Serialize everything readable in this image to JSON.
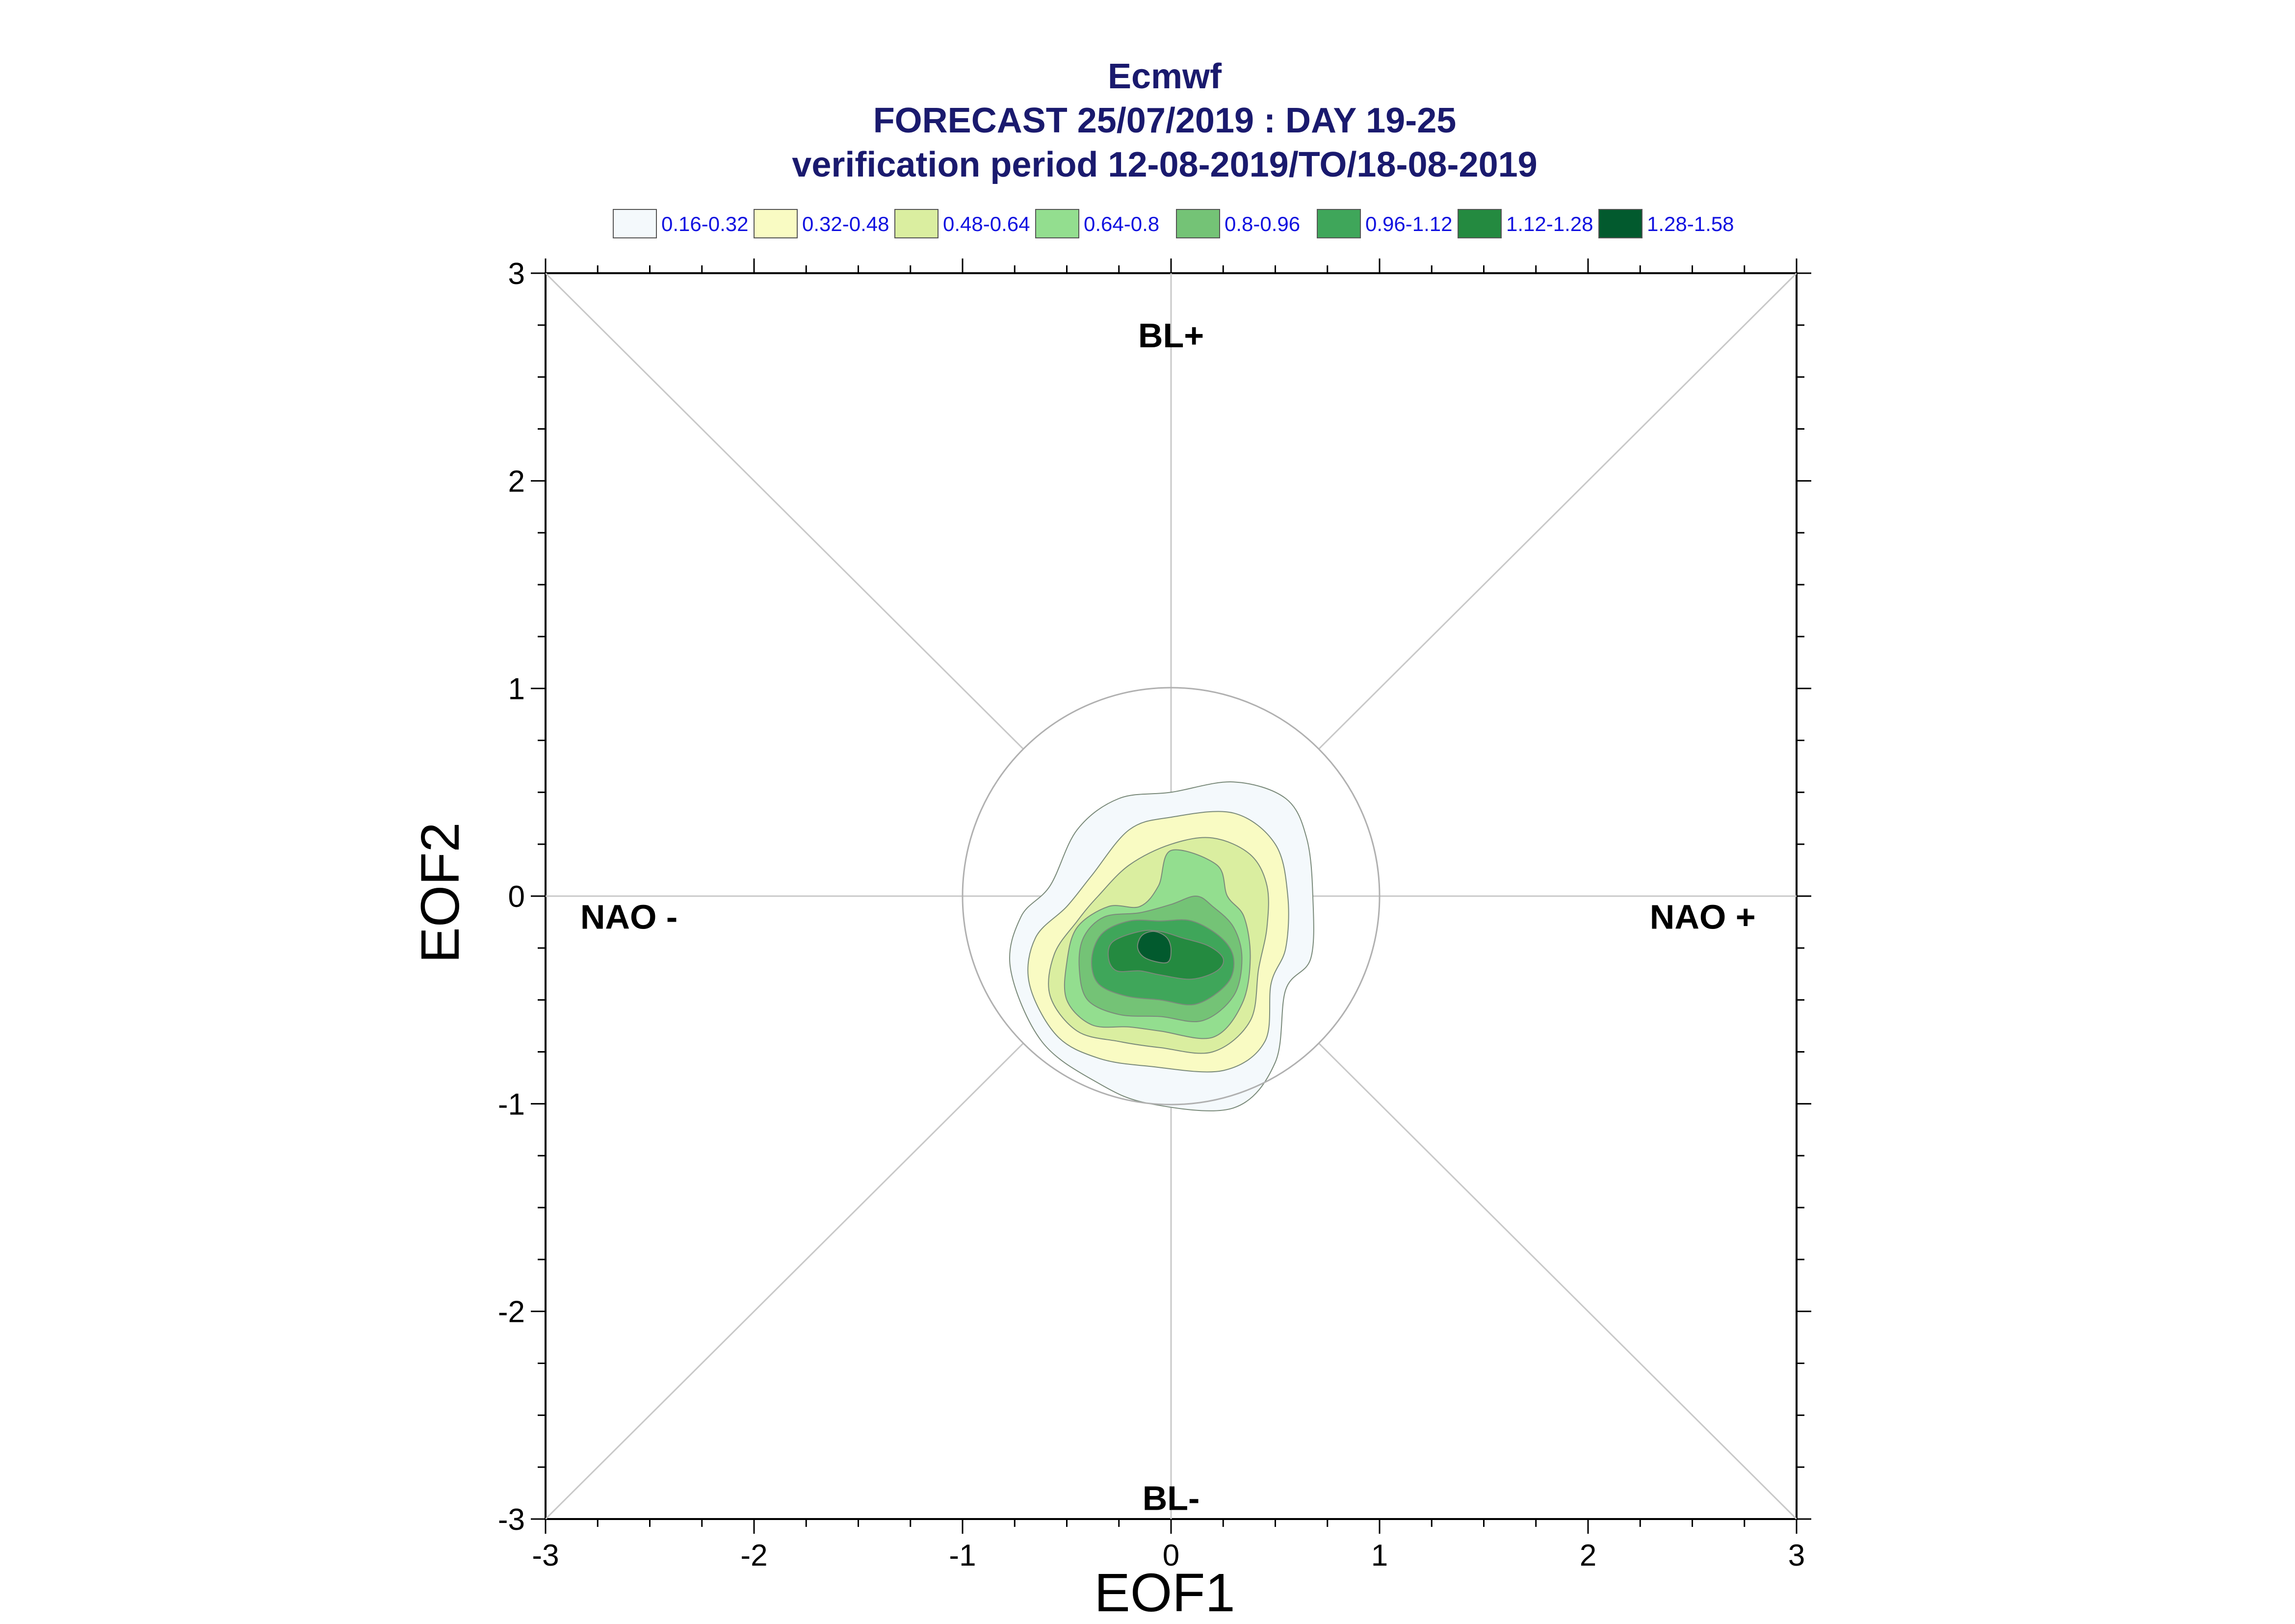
{
  "chart_data": {
    "type": "contour",
    "title_lines": [
      "Ecmwf",
      "FORECAST 25/07/2019 : DAY 19-25",
      "verification period 12-08-2019/TO/18-08-2019"
    ],
    "xlabel": "EOF1",
    "ylabel": "EOF2",
    "xlim": [
      -3,
      3
    ],
    "ylim": [
      -3,
      3
    ],
    "x_ticks": [
      -3,
      -2,
      -1,
      0,
      1,
      2,
      3
    ],
    "y_ticks": [
      -3,
      -2,
      -1,
      0,
      1,
      2,
      3
    ],
    "x_tick_labels": [
      "-3",
      "-2",
      "-1",
      "0",
      "1",
      "2",
      "3"
    ],
    "y_tick_labels": [
      "-3",
      "-2",
      "-1",
      "0",
      "1",
      "2",
      "3"
    ],
    "reference_circle_radius": 1,
    "regime_labels": [
      {
        "text": "BL+",
        "x": 0,
        "y": 2.7
      },
      {
        "text": "BL-",
        "x": 0,
        "y": -2.9
      },
      {
        "text": "NAO -",
        "x": -2.6,
        "y": -0.1
      },
      {
        "text": "NAO +",
        "x": 2.55,
        "y": -0.1
      }
    ],
    "legend": [
      {
        "label": "0.16-0.32",
        "color": "#f4f9fc"
      },
      {
        "label": "0.32-0.48",
        "color": "#f9fbc3"
      },
      {
        "label": "0.48-0.64",
        "color": "#daeea0"
      },
      {
        "label": "0.64-0.8",
        "color": "#93de8f"
      },
      {
        "label": "0.8-0.96",
        "color": "#74c376"
      },
      {
        "label": "0.96-1.12",
        "color": "#3fa65a"
      },
      {
        "label": "1.12-1.28",
        "color": "#248a40"
      },
      {
        "label": "1.28-1.58",
        "color": "#025a2e"
      }
    ],
    "contours": [
      {
        "level": "0.16-0.32",
        "points": [
          [
            -0.1,
            -1.0
          ],
          [
            0.3,
            -1.02
          ],
          [
            0.5,
            -0.8
          ],
          [
            0.55,
            -0.45
          ],
          [
            0.67,
            -0.3
          ],
          [
            0.68,
            0.0
          ],
          [
            0.65,
            0.28
          ],
          [
            0.55,
            0.47
          ],
          [
            0.3,
            0.55
          ],
          [
            0.0,
            0.5
          ],
          [
            -0.25,
            0.47
          ],
          [
            -0.45,
            0.32
          ],
          [
            -0.58,
            0.05
          ],
          [
            -0.72,
            -0.1
          ],
          [
            -0.77,
            -0.35
          ],
          [
            -0.62,
            -0.7
          ],
          [
            -0.35,
            -0.9
          ]
        ]
      },
      {
        "level": "0.32-0.48",
        "points": [
          [
            -0.1,
            -0.82
          ],
          [
            0.25,
            -0.84
          ],
          [
            0.45,
            -0.7
          ],
          [
            0.48,
            -0.42
          ],
          [
            0.55,
            -0.25
          ],
          [
            0.56,
            0.0
          ],
          [
            0.5,
            0.25
          ],
          [
            0.3,
            0.4
          ],
          [
            0.0,
            0.38
          ],
          [
            -0.2,
            0.32
          ],
          [
            -0.38,
            0.1
          ],
          [
            -0.5,
            -0.05
          ],
          [
            -0.65,
            -0.2
          ],
          [
            -0.68,
            -0.42
          ],
          [
            -0.55,
            -0.67
          ],
          [
            -0.35,
            -0.78
          ]
        ]
      },
      {
        "level": "0.48-0.64",
        "points": [
          [
            -0.05,
            -0.73
          ],
          [
            0.2,
            -0.75
          ],
          [
            0.38,
            -0.6
          ],
          [
            0.42,
            -0.35
          ],
          [
            0.46,
            -0.15
          ],
          [
            0.46,
            0.05
          ],
          [
            0.38,
            0.2
          ],
          [
            0.2,
            0.28
          ],
          [
            0.0,
            0.25
          ],
          [
            -0.2,
            0.15
          ],
          [
            -0.35,
            0.0
          ],
          [
            -0.45,
            -0.12
          ],
          [
            -0.56,
            -0.28
          ],
          [
            -0.58,
            -0.48
          ],
          [
            -0.45,
            -0.65
          ],
          [
            -0.25,
            -0.7
          ]
        ]
      },
      {
        "level": "0.64-0.8",
        "points": [
          [
            -0.05,
            -0.65
          ],
          [
            0.2,
            -0.68
          ],
          [
            0.34,
            -0.52
          ],
          [
            0.38,
            -0.3
          ],
          [
            0.35,
            -0.1
          ],
          [
            0.27,
            0.0
          ],
          [
            0.22,
            0.15
          ],
          [
            0.0,
            0.22
          ],
          [
            -0.06,
            0.05
          ],
          [
            -0.15,
            -0.05
          ],
          [
            -0.3,
            -0.05
          ],
          [
            -0.45,
            -0.15
          ],
          [
            -0.5,
            -0.32
          ],
          [
            -0.5,
            -0.5
          ],
          [
            -0.38,
            -0.62
          ],
          [
            -0.2,
            -0.63
          ]
        ]
      },
      {
        "level": "0.8-0.96",
        "points": [
          [
            -0.05,
            -0.58
          ],
          [
            0.15,
            -0.6
          ],
          [
            0.3,
            -0.48
          ],
          [
            0.34,
            -0.3
          ],
          [
            0.3,
            -0.15
          ],
          [
            0.2,
            -0.05
          ],
          [
            0.12,
            0.0
          ],
          [
            0.0,
            -0.04
          ],
          [
            -0.15,
            -0.08
          ],
          [
            -0.32,
            -0.1
          ],
          [
            -0.42,
            -0.2
          ],
          [
            -0.44,
            -0.35
          ],
          [
            -0.4,
            -0.5
          ],
          [
            -0.25,
            -0.57
          ]
        ]
      },
      {
        "level": "0.96-1.12",
        "points": [
          [
            -0.05,
            -0.5
          ],
          [
            0.12,
            -0.52
          ],
          [
            0.27,
            -0.42
          ],
          [
            0.3,
            -0.3
          ],
          [
            0.24,
            -0.2
          ],
          [
            0.1,
            -0.12
          ],
          [
            -0.05,
            -0.12
          ],
          [
            -0.2,
            -0.12
          ],
          [
            -0.33,
            -0.18
          ],
          [
            -0.38,
            -0.3
          ],
          [
            -0.35,
            -0.42
          ],
          [
            -0.22,
            -0.48
          ]
        ]
      },
      {
        "level": "1.12-1.28",
        "points": [
          [
            -0.05,
            -0.38
          ],
          [
            0.1,
            -0.4
          ],
          [
            0.22,
            -0.36
          ],
          [
            0.25,
            -0.3
          ],
          [
            0.18,
            -0.24
          ],
          [
            0.05,
            -0.2
          ],
          [
            -0.05,
            -0.17
          ],
          [
            -0.15,
            -0.17
          ],
          [
            -0.28,
            -0.22
          ],
          [
            -0.3,
            -0.3
          ],
          [
            -0.26,
            -0.36
          ],
          [
            -0.15,
            -0.36
          ]
        ]
      },
      {
        "level": "1.28-1.58",
        "points": [
          [
            -0.12,
            -0.3
          ],
          [
            -0.02,
            -0.32
          ],
          [
            0.0,
            -0.26
          ],
          [
            -0.02,
            -0.2
          ],
          [
            -0.08,
            -0.17
          ],
          [
            -0.14,
            -0.19
          ],
          [
            -0.16,
            -0.25
          ]
        ]
      }
    ]
  }
}
